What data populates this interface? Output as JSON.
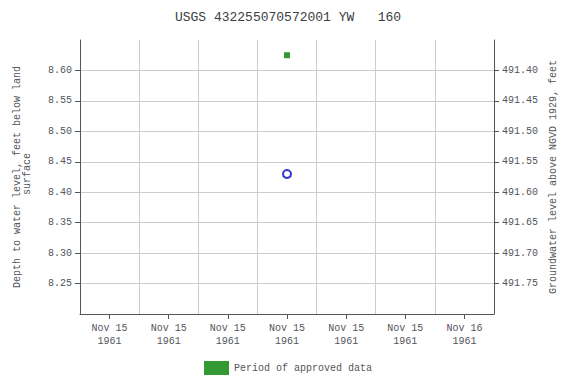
{
  "chart_data": {
    "type": "scatter",
    "title": "USGS 432255070572001 YW   160",
    "ylabel": "Depth to water level, feet below land\n surface",
    "y2label": "Groundwater level above NGVD 1929, feet",
    "categories": [
      "Nov 15\n1961",
      "Nov 15\n1961",
      "Nov 15\n1961",
      "Nov 15\n1961",
      "Nov 15\n1961",
      "Nov 15\n1961",
      "Nov 16\n1961"
    ],
    "series": [
      {
        "values": [
          null,
          null,
          null,
          8.43,
          null,
          null,
          null
        ],
        "color": "#0000cc",
        "marker": "open_circle"
      },
      {
        "name": "Period of approved data",
        "values": [
          null,
          null,
          null,
          8.625,
          null,
          null,
          null
        ],
        "color": "#008000",
        "marker": "square"
      }
    ],
    "ylim": [
      8.2,
      8.65
    ],
    "yticks": [
      8.25,
      {
        "value": 8.3,
        "label": "8.30"
      },
      8.35,
      {
        "value": 8.4,
        "label": "8.40"
      },
      8.45,
      {
        "value": 8.5,
        "label": "8.50"
      },
      8.55,
      {
        "value": 8.6,
        "label": "8.60"
      }
    ],
    "y2lim": [
      491.8,
      491.35
    ],
    "y2ticks": [
      491.75,
      {
        "value": 491.7,
        "label": "491.70"
      },
      491.65,
      {
        "value": 491.6,
        "label": "491.60"
      },
      491.55,
      {
        "value": 491.5,
        "label": "491.50"
      },
      491.45,
      {
        "value": 491.4,
        "label": "491.40"
      }
    ],
    "grid": true,
    "legend": "bottom"
  }
}
